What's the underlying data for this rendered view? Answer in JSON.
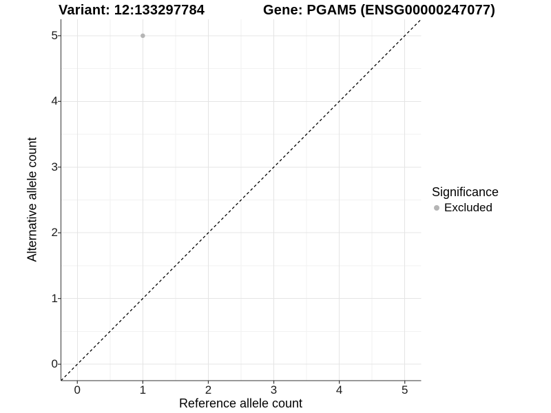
{
  "titles": {
    "variant": "Variant: 12:133297784",
    "gene": "Gene: PGAM5 (ENSG00000247077)"
  },
  "axes": {
    "x_label": "Reference allele count",
    "y_label": "Alternative allele count"
  },
  "legend": {
    "title": "Significance",
    "items": [
      {
        "label": "Excluded",
        "color": "#b5b5b5",
        "marker": "circle-icon"
      }
    ]
  },
  "colors": {
    "background": "#ffffff",
    "grid_major": "#e4e4e4",
    "grid_minor": "#f2f2f2",
    "axis": "#333333",
    "tick_text": "#1a1a1a",
    "reference_line": "#000000",
    "point": "#b5b5b5"
  },
  "chart_data": {
    "type": "scatter",
    "title_left": "Variant: 12:133297784",
    "title_right": "Gene: PGAM5 (ENSG00000247077)",
    "xlabel": "Reference allele count",
    "ylabel": "Alternative allele count",
    "xlim": [
      -0.25,
      5.25
    ],
    "ylim": [
      -0.25,
      5.25
    ],
    "x_ticks": [
      0,
      1,
      2,
      3,
      4,
      5
    ],
    "y_ticks": [
      0,
      1,
      2,
      3,
      4,
      5
    ],
    "grid": {
      "major": true,
      "minor": true
    },
    "legend_position": "right",
    "series": [
      {
        "name": "Excluded",
        "color": "#b5b5b5",
        "points": [
          {
            "x": 1,
            "y": 5
          }
        ]
      }
    ],
    "reference_line": {
      "type": "identity",
      "from": [
        -0.25,
        -0.25
      ],
      "to": [
        5.25,
        5.25
      ],
      "style": "dashed",
      "color": "#000000"
    }
  }
}
